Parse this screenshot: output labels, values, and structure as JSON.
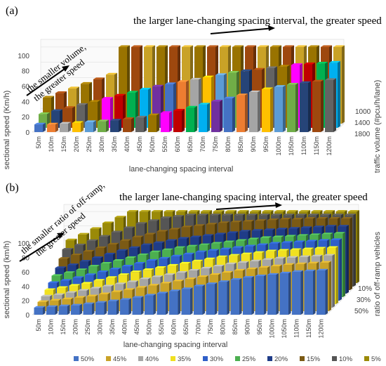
{
  "chart_data": [
    {
      "type": "bar",
      "panel_label": "(a)",
      "xlabel": "lane-changing spacing interval",
      "ylabel": "sectional speed (Km/h)",
      "zlabel": "traffic volume (#pcu/h/lane)",
      "categories": [
        "50m",
        "100m",
        "150m",
        "200m",
        "250m",
        "300m",
        "350m",
        "400m",
        "450m",
        "500m",
        "550m",
        "600m",
        "650m",
        "700m",
        "750m",
        "800m",
        "850m",
        "900m",
        "950m",
        "1000m",
        "1050m",
        "1100m",
        "1150m",
        "1200m"
      ],
      "yticks": [
        "0",
        "20",
        "40",
        "60",
        "80",
        "100"
      ],
      "ylim": [
        0,
        110
      ],
      "ztick_labels": [
        "1000",
        "1400",
        "1800"
      ],
      "annotations": [
        "the larger lane-changing spacing interval, the greater speed",
        "the smaller volume, the greater speed"
      ],
      "series": [
        {
          "name": "1800",
          "values": [
            10,
            10,
            11,
            12,
            13,
            14,
            15,
            17,
            19,
            22,
            25,
            28,
            32,
            36,
            40,
            44,
            48,
            52,
            56,
            59,
            62,
            64,
            66,
            68
          ]
        },
        {
          "name": "1400",
          "values": [
            18,
            22,
            26,
            30,
            34,
            38,
            42,
            46,
            50,
            54,
            57,
            60,
            63,
            66,
            69,
            72,
            74,
            76,
            78,
            80,
            82,
            83,
            84,
            85
          ]
        },
        {
          "name": "1000",
          "values": [
            34,
            40,
            46,
            52,
            58,
            64,
            100,
            100,
            100,
            100,
            100,
            100,
            100,
            100,
            100,
            100,
            100,
            100,
            100,
            100,
            100,
            100,
            100,
            100
          ]
        }
      ]
    },
    {
      "type": "bar",
      "panel_label": "(b)",
      "xlabel": "lane-changing spacing interval",
      "ylabel": "sectional speed (km/h)",
      "zlabel": "ratio of off-ramp vehicles",
      "categories": [
        "50m",
        "100m",
        "150m",
        "200m",
        "250m",
        "300m",
        "350m",
        "400m",
        "450m",
        "500m",
        "550m",
        "600m",
        "650m",
        "700m",
        "750m",
        "800m",
        "850m",
        "900m",
        "950m",
        "1000m",
        "1050m",
        "1100m",
        "1150m",
        "1200m"
      ],
      "yticks": [
        "0",
        "20",
        "40",
        "60",
        "80",
        "100"
      ],
      "ylim": [
        0,
        110
      ],
      "ztick_labels": [
        "10%",
        "30%",
        "50%"
      ],
      "annotations": [
        "the larger lane-changing spacing interval, the greater speed",
        "the smaller ratio of off-ramp, the greater speed"
      ],
      "legend_position": "bottom",
      "series": [
        {
          "name": "50%",
          "color": "#4472c4",
          "values": [
            10,
            11,
            12,
            13,
            15,
            17,
            19,
            21,
            24,
            27,
            30,
            33,
            36,
            40,
            43,
            46,
            49,
            52,
            54,
            56,
            58,
            60,
            61,
            62
          ]
        },
        {
          "name": "45%",
          "color": "#c9a227",
          "values": [
            13,
            15,
            17,
            19,
            21,
            24,
            27,
            30,
            33,
            36,
            39,
            42,
            45,
            48,
            51,
            54,
            57,
            59,
            61,
            63,
            65,
            66,
            67,
            68
          ]
        },
        {
          "name": "40%",
          "color": "#a5a5a5",
          "values": [
            16,
            18,
            21,
            24,
            27,
            30,
            33,
            36,
            40,
            43,
            46,
            49,
            52,
            55,
            58,
            61,
            63,
            65,
            67,
            69,
            70,
            71,
            72,
            73
          ]
        },
        {
          "name": "35%",
          "color": "#f0e020",
          "values": [
            20,
            23,
            26,
            29,
            33,
            37,
            41,
            45,
            48,
            51,
            54,
            57,
            60,
            63,
            66,
            68,
            70,
            72,
            74,
            75,
            76,
            77,
            78,
            79
          ]
        },
        {
          "name": "30%",
          "color": "#2f5fc8",
          "values": [
            25,
            28,
            32,
            36,
            40,
            44,
            48,
            52,
            56,
            59,
            62,
            65,
            68,
            70,
            72,
            74,
            76,
            78,
            80,
            81,
            82,
            83,
            84,
            85
          ]
        },
        {
          "name": "25%",
          "color": "#4caf50",
          "values": [
            30,
            34,
            38,
            43,
            47,
            51,
            55,
            59,
            63,
            66,
            69,
            71,
            73,
            75,
            77,
            79,
            81,
            83,
            84,
            85,
            86,
            87,
            88,
            89
          ]
        },
        {
          "name": "20%",
          "color": "#1f3c88",
          "values": [
            36,
            40,
            45,
            50,
            55,
            60,
            64,
            68,
            71,
            74,
            77,
            79,
            81,
            83,
            85,
            87,
            88,
            89,
            90,
            91,
            92,
            93,
            94,
            94
          ]
        },
        {
          "name": "15%",
          "color": "#7b5a14",
          "values": [
            44,
            49,
            54,
            59,
            64,
            69,
            74,
            78,
            82,
            85,
            88,
            90,
            92,
            94,
            95,
            96,
            97,
            98,
            99,
            99,
            100,
            100,
            100,
            100
          ]
        },
        {
          "name": "10%",
          "color": "#555555",
          "values": [
            52,
            58,
            64,
            70,
            76,
            82,
            88,
            92,
            96,
            98,
            100,
            100,
            100,
            100,
            100,
            100,
            100,
            100,
            100,
            100,
            100,
            100,
            100,
            100
          ]
        },
        {
          "name": "5%",
          "color": "#9a8a08",
          "values": [
            60,
            68,
            76,
            84,
            92,
            100,
            100,
            100,
            100,
            100,
            100,
            100,
            100,
            100,
            100,
            100,
            100,
            100,
            100,
            100,
            100,
            100,
            100,
            100
          ]
        }
      ]
    }
  ],
  "palette_a": [
    "#4472c4",
    "#ed7d31",
    "#a5a5a5",
    "#ffc000",
    "#5b9bd5",
    "#70ad47",
    "#264478",
    "#9e480e",
    "#636363",
    "#997300",
    "#ff00ff",
    "#c00000",
    "#00b050",
    "#00b0f0",
    "#7030a0"
  ]
}
